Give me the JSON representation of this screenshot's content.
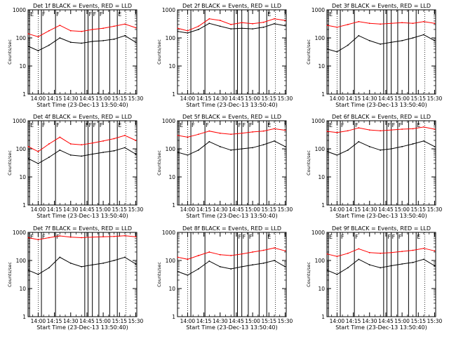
{
  "chart_data": [
    {
      "type": "line",
      "title": "Det 1f BLACK = Events, RED = LLD",
      "xlabel": "Start Time (23-Dec-13 13:50:40)",
      "ylabel": "Counts/sec",
      "yscale": "log",
      "ylim": [
        1,
        1000
      ],
      "y_ticks": [
        "1",
        "10",
        "100",
        "1000"
      ],
      "xlim": [
        "13:50:40",
        "15:31:00"
      ],
      "x_ticks": [
        "14:00",
        "14:15",
        "14:30",
        "14:45",
        "15:00",
        "15:15",
        "15:30"
      ],
      "flags": [
        {
          "text": "E",
          "time": "13:52"
        },
        {
          "text": "F",
          "time": "14:03"
        },
        {
          "text": "F",
          "time": "14:16"
        },
        {
          "text": "F",
          "time": "14:46"
        },
        {
          "text": "F",
          "time": "14:50"
        },
        {
          "text": "F",
          "time": "14:56"
        },
        {
          "text": "E",
          "time": "15:13"
        }
      ],
      "lines_only": [
        "14:43",
        "15:06"
      ],
      "dotted": [
        "14:00",
        "15:21"
      ],
      "series": [
        {
          "color": "#ff0000",
          "x": [
            "13:51",
            "14:00",
            "14:10",
            "14:20",
            "14:30",
            "14:40",
            "14:50",
            "15:00",
            "15:10",
            "15:20",
            "15:30"
          ],
          "y": [
            140,
            110,
            180,
            280,
            180,
            170,
            200,
            220,
            260,
            310,
            230
          ]
        },
        {
          "color": "#000000",
          "x": [
            "13:51",
            "14:00",
            "14:10",
            "14:20",
            "14:30",
            "14:40",
            "14:50",
            "15:00",
            "15:10",
            "15:20",
            "15:30"
          ],
          "y": [
            50,
            35,
            55,
            100,
            70,
            65,
            75,
            80,
            90,
            120,
            70
          ]
        }
      ]
    },
    {
      "type": "line",
      "title": "Det 2f BLACK = Events, RED = LLD",
      "xlabel": "Start Time (23-Dec-13 13:50:40)",
      "ylabel": "Counts/sec",
      "yscale": "log",
      "ylim": [
        1,
        1000
      ],
      "y_ticks": [
        "1",
        "10",
        "100",
        "1000"
      ],
      "xlim": [
        "13:50:40",
        "15:31:00"
      ],
      "x_ticks": [
        "14:00",
        "14:15",
        "14:30",
        "14:45",
        "15:00",
        "15:15",
        "15:30"
      ],
      "flags": [
        {
          "text": "E",
          "time": "15:13"
        }
      ],
      "lines_only": [
        "14:03",
        "14:16",
        "14:43",
        "14:46",
        "14:50",
        "14:56",
        "15:06"
      ],
      "dotted": [
        "14:00",
        "15:21"
      ],
      "series": [
        {
          "color": "#ff0000",
          "x": [
            "13:51",
            "14:00",
            "14:10",
            "14:20",
            "14:30",
            "14:40",
            "14:50",
            "15:00",
            "15:10",
            "15:20",
            "15:30"
          ],
          "y": [
            220,
            180,
            260,
            480,
            420,
            300,
            350,
            320,
            360,
            480,
            420
          ]
        },
        {
          "color": "#000000",
          "x": [
            "13:51",
            "14:00",
            "14:10",
            "14:20",
            "14:30",
            "14:40",
            "14:50",
            "15:00",
            "15:10",
            "15:20",
            "15:30"
          ],
          "y": [
            170,
            150,
            200,
            330,
            260,
            210,
            220,
            210,
            240,
            320,
            270
          ]
        }
      ]
    },
    {
      "type": "line",
      "title": "Det 3f BLACK = Events, RED = LLD",
      "xlabel": "Start Time (23-Dec-13 13:50:40)",
      "ylabel": "Counts/sec",
      "yscale": "log",
      "ylim": [
        1,
        1000
      ],
      "y_ticks": [
        "1",
        "10",
        "100",
        "1000"
      ],
      "xlim": [
        "13:50:40",
        "15:31:00"
      ],
      "x_ticks": [
        "14:00",
        "14:15",
        "14:30",
        "14:45",
        "15:00",
        "15:15",
        "15:30"
      ],
      "flags": [
        {
          "text": "E",
          "time": "13:52"
        }
      ],
      "lines_only": [
        "14:03",
        "14:16",
        "14:43",
        "14:46",
        "14:50",
        "14:56",
        "15:06",
        "15:13"
      ],
      "dotted": [
        "14:00",
        "15:21"
      ],
      "series": [
        {
          "color": "#ff0000",
          "x": [
            "13:51",
            "14:00",
            "14:10",
            "14:20",
            "14:30",
            "14:40",
            "14:50",
            "15:00",
            "15:10",
            "15:20",
            "15:30"
          ],
          "y": [
            280,
            240,
            300,
            380,
            330,
            310,
            330,
            350,
            330,
            380,
            330
          ]
        },
        {
          "color": "#000000",
          "x": [
            "13:51",
            "14:00",
            "14:10",
            "14:20",
            "14:30",
            "14:40",
            "14:50",
            "15:00",
            "15:10",
            "15:20",
            "15:30"
          ],
          "y": [
            40,
            32,
            55,
            120,
            80,
            60,
            70,
            80,
            100,
            130,
            80
          ]
        }
      ]
    },
    {
      "type": "line",
      "title": "Det 4f BLACK = Events, RED = LLD",
      "xlabel": "Start Time (23-Dec-13 13:50:40)",
      "ylabel": "Counts/sec",
      "yscale": "log",
      "ylim": [
        1,
        1000
      ],
      "y_ticks": [
        "1",
        "10",
        "100",
        "1000"
      ],
      "xlim": [
        "13:50:40",
        "15:31:00"
      ],
      "x_ticks": [
        "14:00",
        "14:15",
        "14:30",
        "14:45",
        "15:00",
        "15:15",
        "15:30"
      ],
      "flags": [
        {
          "text": "E",
          "time": "13:52"
        },
        {
          "text": "F",
          "time": "14:03"
        },
        {
          "text": "F",
          "time": "14:16"
        },
        {
          "text": "F",
          "time": "14:43"
        },
        {
          "text": "F",
          "time": "14:46"
        },
        {
          "text": "F",
          "time": "14:50"
        },
        {
          "text": "F",
          "time": "14:56"
        },
        {
          "text": "E",
          "time": "15:13"
        }
      ],
      "lines_only": [
        "15:06"
      ],
      "dotted": [
        "14:00",
        "15:21"
      ],
      "series": [
        {
          "color": "#ff0000",
          "x": [
            "13:51",
            "14:00",
            "14:10",
            "14:20",
            "14:30",
            "14:40",
            "14:50",
            "15:00",
            "15:10",
            "15:20",
            "15:30"
          ],
          "y": [
            120,
            80,
            150,
            260,
            150,
            140,
            160,
            190,
            230,
            300,
            200
          ]
        },
        {
          "color": "#000000",
          "x": [
            "13:51",
            "14:00",
            "14:10",
            "14:20",
            "14:30",
            "14:40",
            "14:50",
            "15:00",
            "15:10",
            "15:20",
            "15:30"
          ],
          "y": [
            45,
            30,
            50,
            90,
            60,
            55,
            65,
            75,
            85,
            110,
            65
          ]
        }
      ]
    },
    {
      "type": "line",
      "title": "Det 5f BLACK = Events, RED = LLD",
      "xlabel": "Start Time (23-Dec-13 13:50:40)",
      "ylabel": "Counts/sec",
      "yscale": "log",
      "ylim": [
        1,
        1000
      ],
      "y_ticks": [
        "1",
        "10",
        "100",
        "1000"
      ],
      "xlim": [
        "13:50:40",
        "15:31:00"
      ],
      "x_ticks": [
        "14:00",
        "14:15",
        "14:30",
        "14:45",
        "15:00",
        "15:15",
        "15:30"
      ],
      "flags": [
        {
          "text": "E",
          "time": "13:52"
        },
        {
          "text": "F",
          "time": "14:03"
        },
        {
          "text": "F",
          "time": "14:16"
        },
        {
          "text": "F",
          "time": "14:46"
        },
        {
          "text": "F",
          "time": "14:50"
        },
        {
          "text": "F",
          "time": "14:56"
        },
        {
          "text": "E",
          "time": "15:13"
        }
      ],
      "lines_only": [
        "14:43",
        "15:06"
      ],
      "dotted": [
        "14:00",
        "15:21"
      ],
      "series": [
        {
          "color": "#ff0000",
          "x": [
            "13:51",
            "14:00",
            "14:10",
            "14:20",
            "14:30",
            "14:40",
            "14:50",
            "15:00",
            "15:10",
            "15:20",
            "15:30"
          ],
          "y": [
            300,
            260,
            330,
            430,
            360,
            330,
            360,
            400,
            430,
            520,
            460
          ]
        },
        {
          "color": "#000000",
          "x": [
            "13:51",
            "14:00",
            "14:10",
            "14:20",
            "14:30",
            "14:40",
            "14:50",
            "15:00",
            "15:10",
            "15:20",
            "15:30"
          ],
          "y": [
            75,
            60,
            90,
            180,
            120,
            90,
            100,
            110,
            140,
            190,
            120
          ]
        }
      ]
    },
    {
      "type": "line",
      "title": "Det 6f BLACK = Events, RED = LLD",
      "xlabel": "Start Time (23-Dec-13 13:50:40)",
      "ylabel": "Counts/sec",
      "yscale": "log",
      "ylim": [
        1,
        1000
      ],
      "y_ticks": [
        "1",
        "10",
        "100",
        "1000"
      ],
      "xlim": [
        "13:50:40",
        "15:31:00"
      ],
      "x_ticks": [
        "14:00",
        "14:15",
        "14:30",
        "14:45",
        "15:00",
        "15:15",
        "15:30"
      ],
      "flags": [
        {
          "text": "E",
          "time": "13:52"
        },
        {
          "text": "F",
          "time": "14:03"
        },
        {
          "text": "F",
          "time": "14:16"
        },
        {
          "text": "F",
          "time": "14:46"
        },
        {
          "text": "F",
          "time": "14:50"
        },
        {
          "text": "F",
          "time": "14:56"
        },
        {
          "text": "E",
          "time": "15:13"
        }
      ],
      "lines_only": [
        "14:43",
        "15:06"
      ],
      "dotted": [
        "14:00",
        "15:21"
      ],
      "series": [
        {
          "color": "#ff0000",
          "x": [
            "13:51",
            "14:00",
            "14:10",
            "14:20",
            "14:30",
            "14:40",
            "14:50",
            "15:00",
            "15:10",
            "15:20",
            "15:30"
          ],
          "y": [
            420,
            380,
            440,
            560,
            470,
            440,
            470,
            500,
            520,
            600,
            500
          ]
        },
        {
          "color": "#000000",
          "x": [
            "13:51",
            "14:00",
            "14:10",
            "14:20",
            "14:30",
            "14:40",
            "14:50",
            "15:00",
            "15:10",
            "15:20",
            "15:30"
          ],
          "y": [
            80,
            60,
            90,
            180,
            120,
            90,
            100,
            120,
            150,
            190,
            120
          ]
        }
      ]
    },
    {
      "type": "line",
      "title": "Det 7f BLACK = Events, RED = LLD",
      "xlabel": "Start Time (23-Dec-13 13:50:40)",
      "ylabel": "Counts/sec",
      "yscale": "log",
      "ylim": [
        1,
        1000
      ],
      "y_ticks": [
        "1",
        "10",
        "100",
        "1000"
      ],
      "xlim": [
        "13:50:40",
        "15:31:00"
      ],
      "x_ticks": [
        "14:00",
        "14:15",
        "14:30",
        "14:45",
        "15:00",
        "15:15",
        "15:30"
      ],
      "flags": [
        {
          "text": "E",
          "time": "13:52"
        },
        {
          "text": "F",
          "time": "14:03"
        },
        {
          "text": "F",
          "time": "14:16"
        }
      ],
      "lines_only": [
        "14:43",
        "14:46",
        "14:50",
        "14:56",
        "15:06",
        "15:13"
      ],
      "dotted": [
        "14:00",
        "15:21"
      ],
      "series": [
        {
          "color": "#ff0000",
          "x": [
            "13:51",
            "14:00",
            "14:10",
            "14:20",
            "14:30",
            "14:40",
            "14:50",
            "15:00",
            "15:10",
            "15:20",
            "15:30"
          ],
          "y": [
            650,
            550,
            650,
            750,
            680,
            650,
            680,
            700,
            720,
            760,
            700
          ]
        },
        {
          "color": "#000000",
          "x": [
            "13:51",
            "14:00",
            "14:10",
            "14:20",
            "14:30",
            "14:40",
            "14:50",
            "15:00",
            "15:10",
            "15:20",
            "15:30"
          ],
          "y": [
            45,
            32,
            55,
            130,
            80,
            60,
            70,
            80,
            100,
            130,
            75
          ]
        }
      ]
    },
    {
      "type": "line",
      "title": "Det 8f BLACK = Events, RED = LLD",
      "xlabel": "Start Time (23-Dec-13 13:50:40)",
      "ylabel": "Counts/sec",
      "yscale": "log",
      "ylim": [
        1,
        1000
      ],
      "y_ticks": [
        "1",
        "10",
        "100",
        "1000"
      ],
      "xlim": [
        "13:50:40",
        "15:31:00"
      ],
      "x_ticks": [
        "14:00",
        "14:15",
        "14:30",
        "14:45",
        "15:00",
        "15:15",
        "15:30"
      ],
      "flags": [
        {
          "text": "F",
          "time": "14:46"
        },
        {
          "text": "F",
          "time": "14:50"
        },
        {
          "text": "F",
          "time": "14:56"
        },
        {
          "text": "E",
          "time": "15:13"
        }
      ],
      "lines_only": [
        "14:03",
        "14:16",
        "14:43",
        "15:06"
      ],
      "dotted": [
        "14:00",
        "15:21"
      ],
      "series": [
        {
          "color": "#ff0000",
          "x": [
            "13:51",
            "14:00",
            "14:10",
            "14:20",
            "14:30",
            "14:40",
            "14:50",
            "15:00",
            "15:10",
            "15:20",
            "15:30"
          ],
          "y": [
            130,
            110,
            150,
            200,
            160,
            150,
            170,
            200,
            230,
            280,
            220
          ]
        },
        {
          "color": "#000000",
          "x": [
            "13:51",
            "14:00",
            "14:10",
            "14:20",
            "14:30",
            "14:40",
            "14:50",
            "15:00",
            "15:10",
            "15:20",
            "15:30"
          ],
          "y": [
            40,
            30,
            50,
            95,
            60,
            50,
            60,
            70,
            80,
            100,
            60
          ]
        }
      ]
    },
    {
      "type": "line",
      "title": "Det 9f BLACK = Events, RED = LLD",
      "xlabel": "Start Time (23-Dec-13 13:50:40)",
      "ylabel": "Counts/sec",
      "yscale": "log",
      "ylim": [
        1,
        1000
      ],
      "y_ticks": [
        "1",
        "10",
        "100",
        "1000"
      ],
      "xlim": [
        "13:50:40",
        "15:31:00"
      ],
      "x_ticks": [
        "14:00",
        "14:15",
        "14:30",
        "14:45",
        "15:00",
        "15:15",
        "15:30"
      ],
      "flags": [
        {
          "text": "E",
          "time": "13:52"
        },
        {
          "text": "F",
          "time": "14:03"
        },
        {
          "text": "F",
          "time": "14:16"
        },
        {
          "text": "F",
          "time": "14:46"
        },
        {
          "text": "F",
          "time": "14:50"
        },
        {
          "text": "F",
          "time": "14:56"
        },
        {
          "text": "E",
          "time": "15:13"
        }
      ],
      "lines_only": [
        "14:43",
        "15:06"
      ],
      "dotted": [
        "14:00",
        "15:21"
      ],
      "series": [
        {
          "color": "#ff0000",
          "x": [
            "13:51",
            "14:00",
            "14:10",
            "14:20",
            "14:30",
            "14:40",
            "14:50",
            "15:00",
            "15:10",
            "15:20",
            "15:30"
          ],
          "y": [
            170,
            140,
            180,
            260,
            190,
            180,
            190,
            210,
            230,
            270,
            220
          ]
        },
        {
          "color": "#000000",
          "x": [
            "13:51",
            "14:00",
            "14:10",
            "14:20",
            "14:30",
            "14:40",
            "14:50",
            "15:00",
            "15:10",
            "15:20",
            "15:30"
          ],
          "y": [
            45,
            32,
            55,
            110,
            70,
            55,
            65,
            75,
            85,
            110,
            65
          ]
        }
      ]
    }
  ]
}
